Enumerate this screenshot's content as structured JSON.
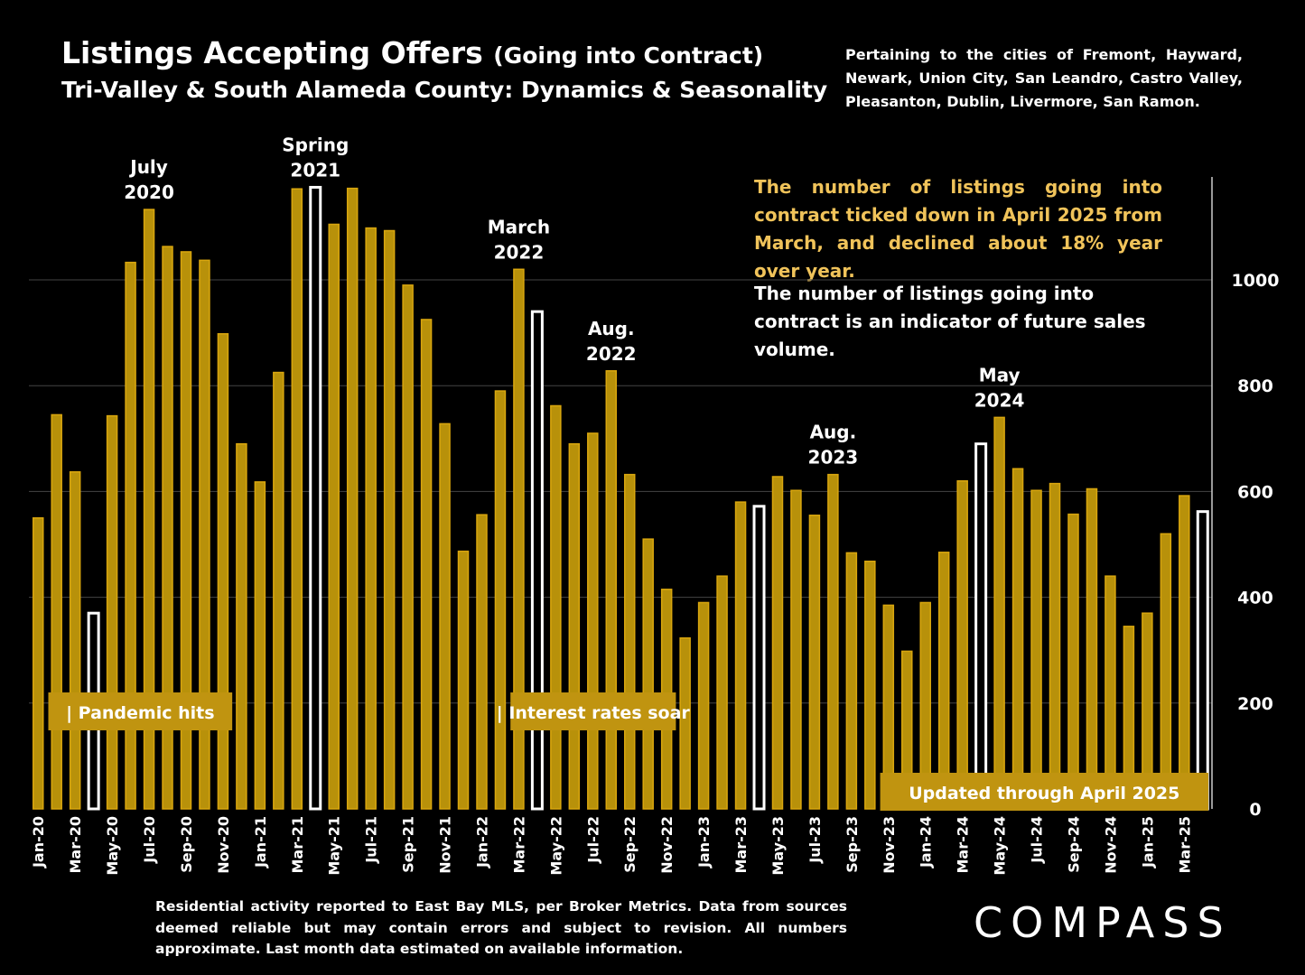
{
  "header": {
    "title_main": "Listings Accepting Offers",
    "title_paren": "(Going into Contract)",
    "subtitle": "Tri-Valley & South Alameda County: Dynamics & Seasonality"
  },
  "cities_note": "Pertaining to the cities of Fremont, Hayward, Newark, Union City, San Leandro, Castro Valley, Pleasanton, Dublin, Livermore, San Ramon.",
  "commentary": {
    "gold": "The number of listings going into contract ticked down in April 2025 from March, and declined about 18% year over year.",
    "white": "The number of listings going into contract is an indicator of future sales volume."
  },
  "footnote": "Residential activity reported to East Bay MLS, per Broker Metrics. Data from sources deemed reliable but may contain errors and subject to revision.  All numbers approximate. Last month data estimated on available information.",
  "logo_text": "COMPASS",
  "colors": {
    "bar": "#b8910a",
    "bar_edge": "#d9a60e",
    "highlight_fill": "#000000",
    "highlight_edge": "#ffffff",
    "label_box": "#c09410",
    "gridline": "#444444"
  },
  "chart_data": {
    "type": "bar",
    "y_axis_position": "right",
    "ylim": [
      0,
      1200
    ],
    "yticks": [
      "0",
      "200",
      "400",
      "600",
      "800",
      "1000"
    ],
    "grid": true,
    "categories": [
      "Jan-20",
      "Feb-20",
      "Mar-20",
      "Apr-20",
      "May-20",
      "Jun-20",
      "Jul-20",
      "Aug-20",
      "Sep-20",
      "Oct-20",
      "Nov-20",
      "Dec-20",
      "Jan-21",
      "Feb-21",
      "Mar-21",
      "Apr-21",
      "May-21",
      "Jun-21",
      "Jul-21",
      "Aug-21",
      "Sep-21",
      "Oct-21",
      "Nov-21",
      "Dec-21",
      "Jan-22",
      "Feb-22",
      "Mar-22",
      "Apr-22",
      "May-22",
      "Jun-22",
      "Jul-22",
      "Aug-22",
      "Sep-22",
      "Oct-22",
      "Nov-22",
      "Dec-22",
      "Jan-23",
      "Feb-23",
      "Mar-23",
      "Apr-23",
      "May-23",
      "Jun-23",
      "Jul-23",
      "Aug-23",
      "Sep-23",
      "Oct-23",
      "Nov-23",
      "Dec-23",
      "Jan-24",
      "Feb-24",
      "Mar-24",
      "Apr-24",
      "May-24",
      "Jun-24",
      "Jul-24",
      "Aug-24",
      "Sep-24",
      "Oct-24",
      "Nov-24",
      "Dec-24",
      "Jan-25",
      "Feb-25",
      "Mar-25",
      "Apr-25"
    ],
    "values": [
      550,
      745,
      637,
      370,
      743,
      1033,
      1133,
      1063,
      1053,
      1037,
      898,
      690,
      618,
      825,
      1172,
      1175,
      1105,
      1173,
      1098,
      1093,
      990,
      925,
      728,
      487,
      556,
      790,
      1020,
      940,
      762,
      690,
      710,
      828,
      632,
      510,
      415,
      323,
      390,
      440,
      580,
      572,
      628,
      602,
      555,
      632,
      484,
      468,
      385,
      298,
      390,
      485,
      620,
      690,
      740,
      643,
      602,
      615,
      557,
      605,
      440,
      345,
      370,
      520,
      592,
      562
    ],
    "highlighted": [
      "Apr-20",
      "Apr-21",
      "Apr-22",
      "Apr-23",
      "Apr-24",
      "Apr-25"
    ],
    "x_tick_labels": [
      "Jan-20",
      "Mar-20",
      "May-20",
      "Jul-20",
      "Sep-20",
      "Nov-20",
      "Jan-21",
      "Mar-21",
      "May-21",
      "Jul-21",
      "Sep-21",
      "Nov-21",
      "Jan-22",
      "Mar-22",
      "May-22",
      "Jul-22",
      "Sep-22",
      "Nov-22",
      "Jan-23",
      "Mar-23",
      "May-23",
      "Jul-23",
      "Sep-23",
      "Nov-23",
      "Jan-24",
      "Mar-24",
      "May-24",
      "Jul-24",
      "Sep-24",
      "Nov-24",
      "Jan-25",
      "Mar-25"
    ],
    "annotations": [
      {
        "category": "Jul-20",
        "lines": [
          "July",
          "2020"
        ]
      },
      {
        "category": "Apr-21",
        "lines": [
          "Spring",
          "2021"
        ]
      },
      {
        "category": "Mar-22",
        "lines": [
          "March",
          "2022"
        ]
      },
      {
        "category": "Aug-22",
        "lines": [
          "Aug.",
          "2022"
        ]
      },
      {
        "category": "Aug-23",
        "lines": [
          "Aug.",
          "2023"
        ]
      },
      {
        "category": "May-24",
        "lines": [
          "May",
          "2024"
        ]
      }
    ],
    "event_labels": [
      {
        "text": "| Pandemic hits",
        "from": "Feb-20",
        "to": "Nov-20"
      },
      {
        "text": "| Interest rates soar",
        "from": "Mar-22",
        "to": "Nov-22"
      },
      {
        "text": "Updated through April 2025",
        "from": "Nov-23",
        "to": "Apr-25"
      }
    ]
  }
}
